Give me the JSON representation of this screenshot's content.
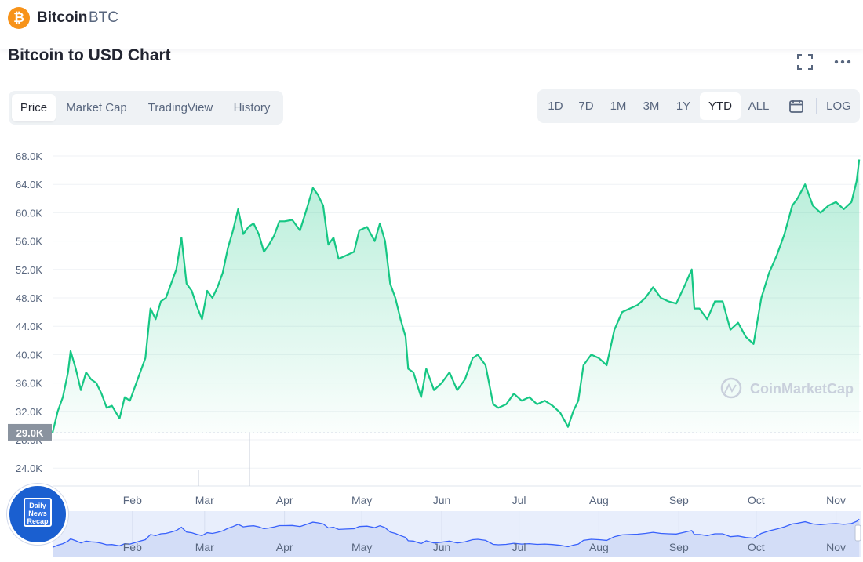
{
  "header": {
    "coin_icon": "₿",
    "coin_name": "Bitcoin",
    "coin_symbol": "BTC"
  },
  "title": "Bitcoin to USD Chart",
  "icons": {
    "expand": "fullscreen-icon",
    "more": "more-icon",
    "calendar": "calendar-icon"
  },
  "tabs": [
    {
      "label": "Price",
      "active": true
    },
    {
      "label": "Market Cap",
      "active": false
    },
    {
      "label": "TradingView",
      "active": false
    },
    {
      "label": "History",
      "active": false
    }
  ],
  "ranges": [
    {
      "label": "1D",
      "active": false
    },
    {
      "label": "7D",
      "active": false
    },
    {
      "label": "1M",
      "active": false
    },
    {
      "label": "3M",
      "active": false
    },
    {
      "label": "1Y",
      "active": false
    },
    {
      "label": "YTD",
      "active": true
    },
    {
      "label": "ALL",
      "active": false
    },
    {
      "label": "LOG",
      "active": false
    }
  ],
  "badge": {
    "line1": "Daily",
    "line2": "News",
    "line3": "Recap"
  },
  "colors": {
    "line": "#16c784",
    "fill": "#16c784",
    "navigator_line": "#3861fb",
    "navigator_bg": "#e8eefc",
    "brand_blue": "#1a5fd0"
  },
  "chart_data": {
    "type": "area",
    "title": "",
    "xlabel": "",
    "ylabel": "",
    "y_ticks": [
      "24.0K",
      "28.0K",
      "32.0K",
      "36.0K",
      "40.0K",
      "44.0K",
      "48.0K",
      "52.0K",
      "56.0K",
      "60.0K",
      "64.0K",
      "68.0K"
    ],
    "ylim": [
      22000,
      70000
    ],
    "x_tick_labels": [
      "Feb",
      "Mar",
      "Apr",
      "May",
      "Jun",
      "Jul",
      "Aug",
      "Sep",
      "Oct",
      "Nov"
    ],
    "current_price_label": "29.0K",
    "start_price": 29000,
    "watermark": "CoinMarketCap",
    "grid": true,
    "series": [
      {
        "x": [
          "2021-01-01",
          "2021-01-03",
          "2021-01-05",
          "2021-01-07",
          "2021-01-08",
          "2021-01-10",
          "2021-01-12",
          "2021-01-14",
          "2021-01-16",
          "2021-01-18",
          "2021-01-20",
          "2021-01-22",
          "2021-01-24",
          "2021-01-27",
          "2021-01-29",
          "2021-01-31",
          "2021-02-02",
          "2021-02-04",
          "2021-02-06",
          "2021-02-08",
          "2021-02-10",
          "2021-02-12",
          "2021-02-14",
          "2021-02-16",
          "2021-02-18",
          "2021-02-20",
          "2021-02-22",
          "2021-02-24",
          "2021-02-26",
          "2021-02-28",
          "2021-03-02",
          "2021-03-04",
          "2021-03-06",
          "2021-03-08",
          "2021-03-10",
          "2021-03-12",
          "2021-03-14",
          "2021-03-16",
          "2021-03-18",
          "2021-03-20",
          "2021-03-22",
          "2021-03-24",
          "2021-03-26",
          "2021-03-28",
          "2021-03-30",
          "2021-04-01",
          "2021-04-04",
          "2021-04-07",
          "2021-04-10",
          "2021-04-12",
          "2021-04-14",
          "2021-04-16",
          "2021-04-18",
          "2021-04-20",
          "2021-04-22",
          "2021-04-25",
          "2021-04-28",
          "2021-04-30",
          "2021-05-03",
          "2021-05-06",
          "2021-05-08",
          "2021-05-10",
          "2021-05-12",
          "2021-05-14",
          "2021-05-16",
          "2021-05-18",
          "2021-05-19",
          "2021-05-21",
          "2021-05-24",
          "2021-05-26",
          "2021-05-29",
          "2021-06-01",
          "2021-06-04",
          "2021-06-07",
          "2021-06-10",
          "2021-06-13",
          "2021-06-15",
          "2021-06-18",
          "2021-06-21",
          "2021-06-23",
          "2021-06-26",
          "2021-06-29",
          "2021-07-02",
          "2021-07-05",
          "2021-07-08",
          "2021-07-11",
          "2021-07-14",
          "2021-07-17",
          "2021-07-20",
          "2021-07-22",
          "2021-07-24",
          "2021-07-26",
          "2021-07-29",
          "2021-08-01",
          "2021-08-04",
          "2021-08-07",
          "2021-08-10",
          "2021-08-13",
          "2021-08-16",
          "2021-08-19",
          "2021-08-22",
          "2021-08-25",
          "2021-08-28",
          "2021-08-31",
          "2021-09-03",
          "2021-09-06",
          "2021-09-07",
          "2021-09-09",
          "2021-09-12",
          "2021-09-15",
          "2021-09-18",
          "2021-09-21",
          "2021-09-24",
          "2021-09-27",
          "2021-09-30",
          "2021-10-03",
          "2021-10-06",
          "2021-10-09",
          "2021-10-12",
          "2021-10-15",
          "2021-10-17",
          "2021-10-20",
          "2021-10-23",
          "2021-10-26",
          "2021-10-29",
          "2021-11-01",
          "2021-11-04",
          "2021-11-07",
          "2021-11-09",
          "2021-11-10"
        ],
        "values": [
          29000,
          32000,
          34000,
          37500,
          40500,
          38000,
          35000,
          37500,
          36500,
          36000,
          34500,
          32500,
          32800,
          31000,
          34000,
          33500,
          35500,
          37500,
          39500,
          46500,
          45000,
          47500,
          48000,
          50000,
          52000,
          56500,
          50000,
          49000,
          46800,
          45000,
          49000,
          48000,
          49500,
          51500,
          55000,
          57500,
          60500,
          57000,
          58000,
          58500,
          57000,
          54500,
          55500,
          56800,
          58800,
          58800,
          59000,
          57500,
          61000,
          63500,
          62500,
          61000,
          55500,
          56500,
          53500,
          54000,
          54500,
          57500,
          58000,
          56000,
          58500,
          56000,
          50000,
          48000,
          45000,
          42500,
          38000,
          37500,
          34000,
          38000,
          35000,
          36000,
          37500,
          35000,
          36500,
          39500,
          40000,
          38500,
          33000,
          32500,
          33000,
          34500,
          33500,
          34000,
          33000,
          33500,
          32800,
          31800,
          29800,
          32000,
          33500,
          38500,
          40000,
          39500,
          38500,
          43500,
          46000,
          46500,
          47000,
          48000,
          49500,
          48000,
          47500,
          47200,
          49500,
          52000,
          46500,
          46500,
          45000,
          47500,
          47500,
          43500,
          44500,
          42500,
          41500,
          48000,
          51500,
          54000,
          57000,
          61000,
          62000,
          64000,
          61000,
          60000,
          61000,
          61500,
          60500,
          61500,
          64500,
          67500
        ]
      }
    ],
    "navigator": {
      "x_tick_labels": [
        "Feb",
        "Mar",
        "Apr",
        "May",
        "Jun",
        "Jul",
        "Aug",
        "Sep",
        "Oct",
        "Nov"
      ]
    }
  }
}
